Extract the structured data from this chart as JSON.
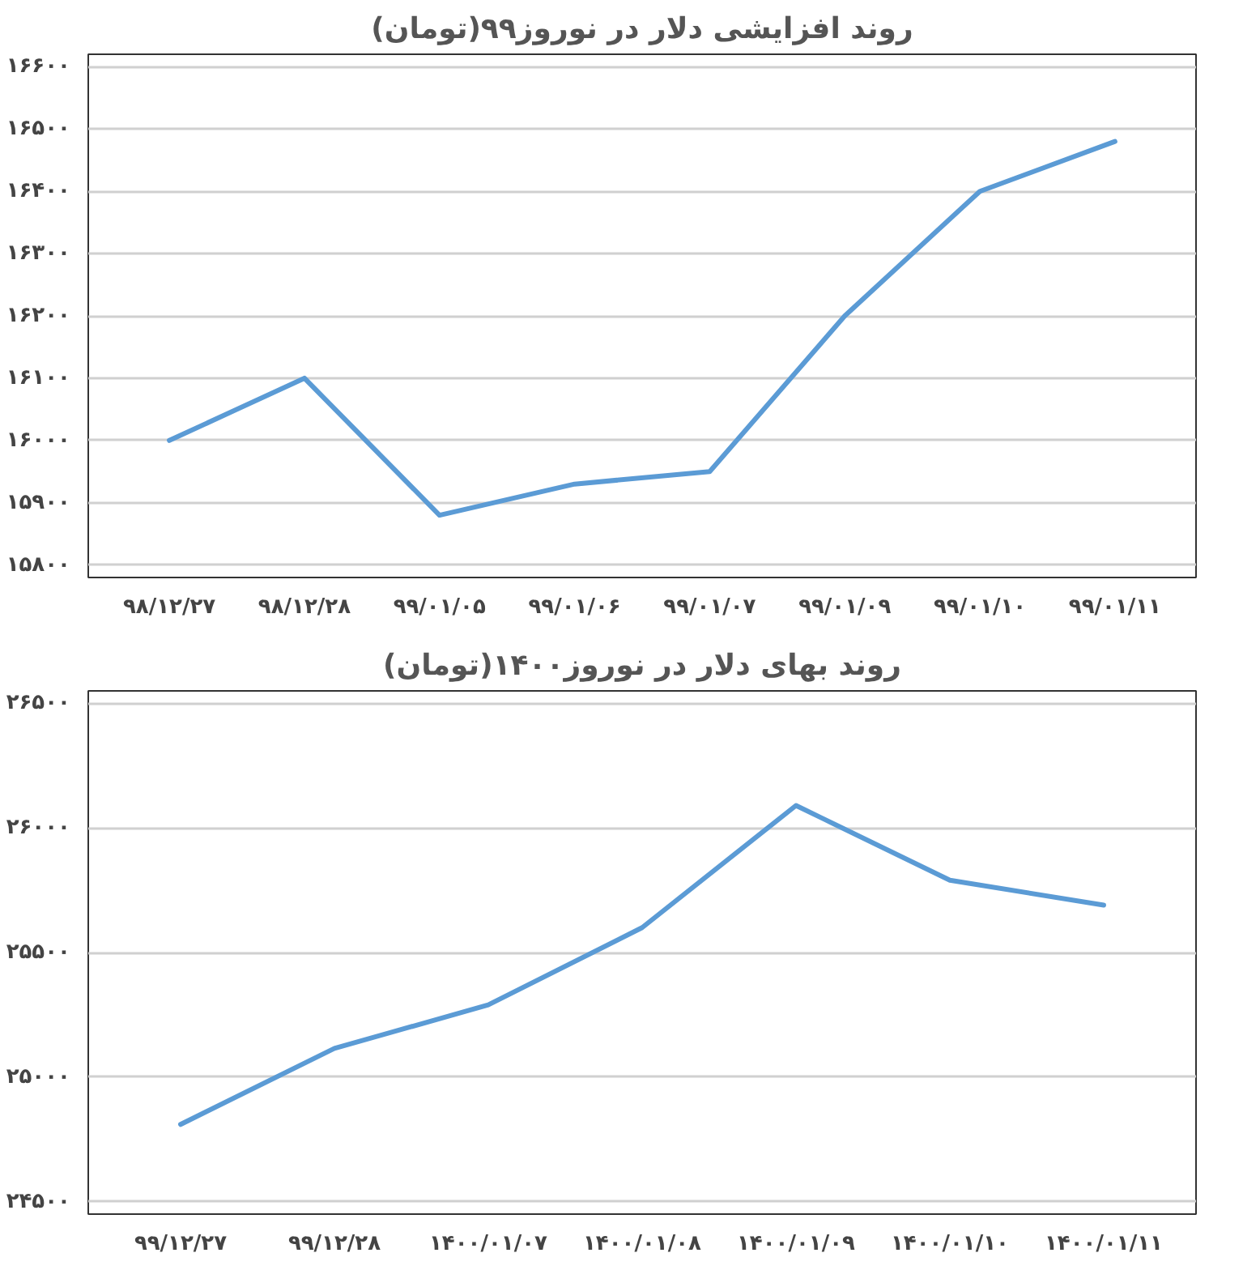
{
  "chart_data": [
    {
      "type": "line",
      "title": "روند افزایشی دلار در نوروز۹۹(تومان)",
      "categories": [
        "۹۸/۱۲/۲۷",
        "۹۸/۱۲/۲۸",
        "۹۹/۰۱/۰۵",
        "۹۹/۰۱/۰۶",
        "۹۹/۰۱/۰۷",
        "۹۹/۰۱/۰۹",
        "۹۹/۰۱/۱۰",
        "۹۹/۰۱/۱۱"
      ],
      "series": [
        {
          "color": "#5b9bd5",
          "values": [
            16000,
            16100,
            15880,
            15930,
            15950,
            16200,
            16400,
            16480
          ]
        }
      ],
      "ylim": [
        15780,
        16620
      ],
      "yticks": [
        {
          "value": 15800,
          "label": "۱۵۸۰۰"
        },
        {
          "value": 15900,
          "label": "۱۵۹۰۰"
        },
        {
          "value": 16000,
          "label": "۱۶۰۰۰"
        },
        {
          "value": 16100,
          "label": "۱۶۱۰۰"
        },
        {
          "value": 16200,
          "label": "۱۶۲۰۰"
        },
        {
          "value": 16300,
          "label": "۱۶۳۰۰"
        },
        {
          "value": 16400,
          "label": "۱۶۴۰۰"
        },
        {
          "value": 16500,
          "label": "۱۶۵۰۰"
        },
        {
          "value": 16600,
          "label": "۱۶۶۰۰"
        }
      ],
      "grid": "y",
      "marker": "none",
      "line_style": "solid"
    },
    {
      "type": "line",
      "title": "روند بهای دلار در نوروز۱۴۰۰(تومان)",
      "categories": [
        "۹۹/۱۲/۲۷",
        "۹۹/۱۲/۲۸",
        "۱۴۰۰/۰۱/۰۷",
        "۱۴۰۰/۰۱/۰۸",
        "۱۴۰۰/۰۱/۰۹",
        "۱۴۰۰/۰۱/۱۰",
        "۱۴۰۰/۰۱/۱۱"
      ],
      "series": [
        {
          "color": "#5b9bd5",
          "values": [
            24810,
            25115,
            25290,
            25600,
            26090,
            25790,
            25690
          ]
        }
      ],
      "ylim": [
        24450,
        26550
      ],
      "yticks": [
        {
          "value": 24500,
          "label": "۲۴۵۰۰"
        },
        {
          "value": 25000,
          "label": "۲۵۰۰۰"
        },
        {
          "value": 25500,
          "label": "۲۵۵۰۰"
        },
        {
          "value": 26000,
          "label": "۲۶۰۰۰"
        },
        {
          "value": 26500,
          "label": "۲۶۵۰۰"
        }
      ],
      "grid": "y",
      "marker": "none",
      "line_style": "solid"
    }
  ]
}
